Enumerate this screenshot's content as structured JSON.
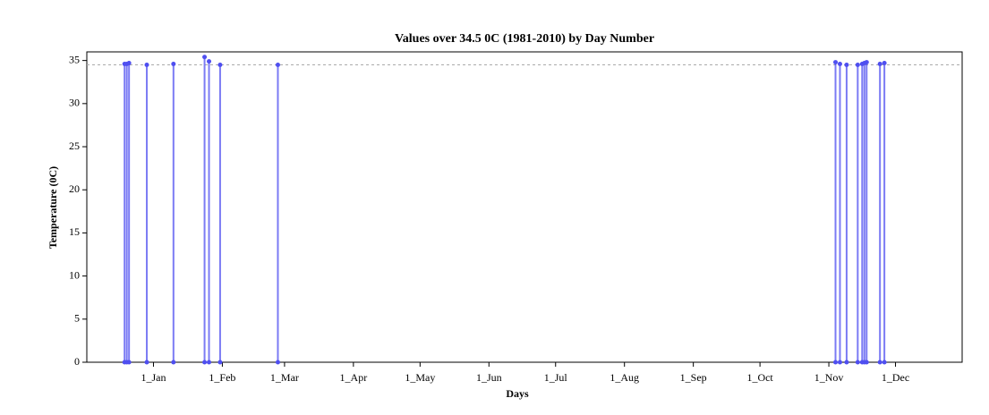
{
  "chart_data": {
    "type": "spike",
    "title": "Values over 34.5 0C (1981-2010) by Day Number",
    "xlabel": "Days",
    "ylabel": "Temperature (0C)",
    "threshold": 34.5,
    "color": "#4f4ff0",
    "x": [
      -12,
      -11,
      -10,
      -2,
      10,
      24,
      26,
      31,
      57,
      308,
      310,
      313,
      318,
      320,
      321,
      322,
      328,
      330
    ],
    "values": [
      34.6,
      34.6,
      34.7,
      34.5,
      34.6,
      35.4,
      34.9,
      34.5,
      34.5,
      34.8,
      34.6,
      34.5,
      34.5,
      34.6,
      34.7,
      34.8,
      34.6,
      34.7
    ],
    "xlim": [
      -29,
      365
    ],
    "xticks": [
      {
        "value": 1,
        "label": "1_Jan"
      },
      {
        "value": 32,
        "label": "1_Feb"
      },
      {
        "value": 60,
        "label": "1_Mar"
      },
      {
        "value": 91,
        "label": "1_Apr"
      },
      {
        "value": 121,
        "label": "1_May"
      },
      {
        "value": 152,
        "label": "1_Jun"
      },
      {
        "value": 182,
        "label": "1_Jul"
      },
      {
        "value": 213,
        "label": "1_Aug"
      },
      {
        "value": 244,
        "label": "1_Sep"
      },
      {
        "value": 274,
        "label": "1_Oct"
      },
      {
        "value": 305,
        "label": "1_Nov"
      },
      {
        "value": 335,
        "label": "1_Dec"
      }
    ],
    "ylim": [
      0,
      36
    ],
    "yticks": [
      0,
      5,
      10,
      15,
      20,
      25,
      30,
      35
    ]
  }
}
